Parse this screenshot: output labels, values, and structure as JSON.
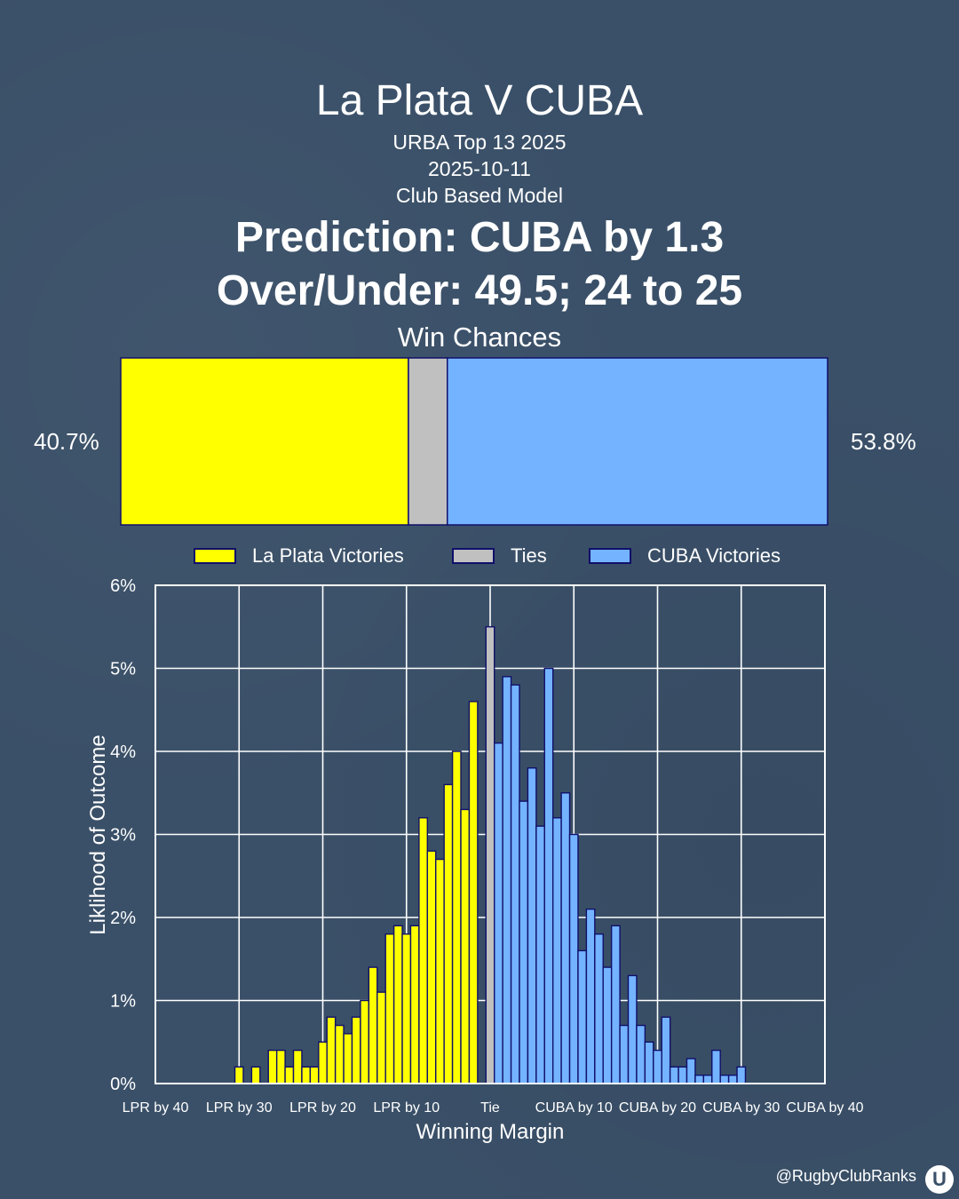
{
  "header": {
    "title": "La Plata V CUBA",
    "competition": "URBA Top 13 2025",
    "date": "2025-10-11",
    "model": "Club Based Model",
    "prediction": "Prediction: CUBA by 1.3",
    "over_under": "Over/Under: 49.5; 24 to 25"
  },
  "win_chances": {
    "title": "Win Chances",
    "home_pct_label": "40.7%",
    "away_pct_label": "53.8%",
    "home": 40.7,
    "tie": 5.5,
    "away": 53.8
  },
  "legend": {
    "home": "La Plata Victories",
    "tie": "Ties",
    "away": "CUBA Victories"
  },
  "colors": {
    "home": "#ffff00",
    "tie": "#c0c0c0",
    "away": "#74b3ff",
    "outline": "#10106a",
    "background": "#3a5068",
    "grid": "#ffffff"
  },
  "chart_data": {
    "type": "bar",
    "xlabel": "Winning Margin",
    "ylabel": "Liklihood of Outcome",
    "xlim": [
      -40,
      40
    ],
    "ylim": [
      0,
      6
    ],
    "x_ticks": [
      -40,
      -30,
      -20,
      -10,
      0,
      10,
      20,
      30,
      40
    ],
    "x_tick_labels": [
      "LPR by 40",
      "LPR by 30",
      "LPR by 20",
      "LPR by 10",
      "Tie",
      "CUBA by 10",
      "CUBA by 20",
      "CUBA by 30",
      "CUBA by 40"
    ],
    "y_ticks": [
      0,
      1,
      2,
      3,
      4,
      5,
      6
    ],
    "y_tick_labels": [
      "0%",
      "1%",
      "2%",
      "3%",
      "4%",
      "5%",
      "6%"
    ],
    "series": [
      {
        "name": "La Plata Victories",
        "x": [
          -30,
          -28,
          -26,
          -25,
          -24,
          -23,
          -22,
          -21,
          -20,
          -19,
          -18,
          -17,
          -16,
          -15,
          -14,
          -13,
          -12,
          -11,
          -10,
          -9,
          -8,
          -7,
          -6,
          -5,
          -4,
          -3,
          -2,
          -1
        ],
        "values": [
          0.2,
          0.2,
          0.4,
          0.4,
          0.2,
          0.4,
          0.2,
          0.2,
          0.5,
          0.8,
          0.7,
          0.6,
          0.8,
          1.0,
          1.4,
          1.1,
          1.8,
          1.9,
          1.8,
          1.9,
          3.2,
          2.8,
          2.7,
          3.6,
          4.0,
          3.3,
          4.6,
          0
        ]
      },
      {
        "name": "Ties",
        "x": [
          0
        ],
        "values": [
          5.5
        ]
      },
      {
        "name": "CUBA Victories",
        "x": [
          1,
          2,
          3,
          4,
          5,
          6,
          7,
          8,
          9,
          10,
          11,
          12,
          13,
          14,
          15,
          16,
          17,
          18,
          19,
          20,
          21,
          22,
          23,
          24,
          25,
          26,
          27,
          28,
          29,
          30
        ],
        "values": [
          4.1,
          4.9,
          4.8,
          3.4,
          3.8,
          3.1,
          5.0,
          3.2,
          3.5,
          3.0,
          1.6,
          2.1,
          1.8,
          1.4,
          1.9,
          0.7,
          1.3,
          0.7,
          0.5,
          0.4,
          0.8,
          0.2,
          0.2,
          0.3,
          0.1,
          0.1,
          0.4,
          0.1,
          0.1,
          0.2
        ]
      }
    ]
  },
  "footer": {
    "handle": "@RugbyClubRanks",
    "logo_glyph": "U"
  }
}
